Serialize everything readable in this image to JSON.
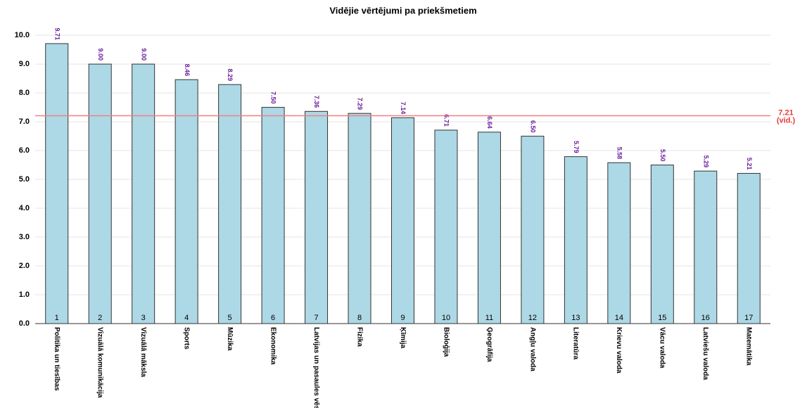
{
  "chart_data": {
    "type": "bar",
    "title": "Vidējie vērtējumi pa priekšmetiem",
    "categories": [
      "Politika un tiesības",
      "Vizuālā komunikācija",
      "Vizuālā māksla",
      "Sports",
      "Mūzika",
      "Ekonomika",
      "Latvijas un pasaules vēs",
      "Fizika",
      "Ķīmija",
      "Bioloģija",
      "Ģeogrāfija",
      "Angļu valoda",
      "Literatūra",
      "Krievu valoda",
      "Vācu valoda",
      "Latviešu valoda",
      "Matemātika"
    ],
    "bar_numbers": [
      1,
      2,
      3,
      4,
      5,
      6,
      7,
      8,
      9,
      10,
      11,
      12,
      13,
      14,
      15,
      16,
      17
    ],
    "values": [
      9.71,
      9.0,
      9.0,
      8.46,
      8.29,
      7.5,
      7.36,
      7.29,
      7.14,
      6.71,
      6.64,
      6.5,
      5.79,
      5.58,
      5.5,
      5.29,
      5.21
    ],
    "value_labels": [
      "9.71",
      "9.00",
      "9.00",
      "8.46",
      "8.29",
      "7.50",
      "7.36",
      "7.29",
      "7.14",
      "6.71",
      "6.64",
      "6.50",
      "5.79",
      "5.58",
      "5.50",
      "5.29",
      "5.21"
    ],
    "color": "#add8e6",
    "average": {
      "value": 7.21,
      "label": "7.21",
      "note": "(vid.)",
      "color": "#f08080"
    },
    "ylim": [
      0,
      10.1
    ],
    "yticks": [
      {
        "value": 0,
        "label": "0.0"
      },
      {
        "value": 1,
        "label": "1.0"
      },
      {
        "value": 2,
        "label": "2.0"
      },
      {
        "value": 3,
        "label": "3.0"
      },
      {
        "value": 4,
        "label": "4.0"
      },
      {
        "value": 5,
        "label": "5.0"
      },
      {
        "value": 6,
        "label": "6.0"
      },
      {
        "value": 7,
        "label": "7.0"
      },
      {
        "value": 8,
        "label": "8.0"
      },
      {
        "value": 9,
        "label": "9.0"
      },
      {
        "value": 10,
        "label": "10.0"
      }
    ],
    "grid": true
  }
}
